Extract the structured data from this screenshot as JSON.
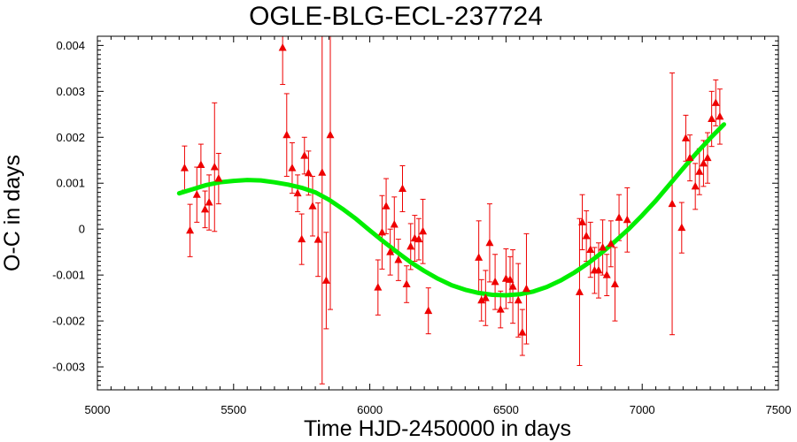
{
  "chart_data": {
    "type": "scatter",
    "title": "OGLE-BLG-ECL-237724",
    "xlabel": "Time HJD-2450000 in days",
    "ylabel": "O-C in days",
    "xlim": [
      5000,
      7500
    ],
    "ylim": [
      -0.0035,
      0.0042
    ],
    "x_ticks": [
      5000,
      5500,
      6000,
      6500,
      7000,
      7500
    ],
    "x_tick_labels": [
      "5000",
      "5500",
      "6000",
      "6500",
      "7000",
      "7500"
    ],
    "y_ticks": [
      -0.003,
      -0.002,
      -0.001,
      0,
      0.001,
      0.002,
      0.003,
      0.004
    ],
    "y_tick_labels": [
      "-0.003",
      "-0.002",
      "-0.001",
      "0",
      "0.001",
      "0.002",
      "0.003",
      "0.004"
    ],
    "grid": false,
    "colors": {
      "points": "#ee0000",
      "fit": "#00ee00",
      "frame": "#000000"
    },
    "series": [
      {
        "kind": "observations_with_errorbars",
        "points": [
          {
            "x": 5320,
            "y": 0.00133,
            "err": 0.00048
          },
          {
            "x": 5340,
            "y": -3e-05,
            "err": 0.00057
          },
          {
            "x": 5365,
            "y": 0.00075,
            "err": 0.0006
          },
          {
            "x": 5380,
            "y": 0.0014,
            "err": 0.00045
          },
          {
            "x": 5395,
            "y": 0.00043,
            "err": 0.0004
          },
          {
            "x": 5410,
            "y": 0.00058,
            "err": 0.0006
          },
          {
            "x": 5430,
            "y": 0.00135,
            "err": 0.0014
          },
          {
            "x": 5445,
            "y": 0.0011,
            "err": 0.00055
          },
          {
            "x": 5680,
            "y": 0.00395,
            "err": 0.0008
          },
          {
            "x": 5695,
            "y": 0.00205,
            "err": 0.0009
          },
          {
            "x": 5715,
            "y": 0.00133,
            "err": 0.00055
          },
          {
            "x": 5735,
            "y": 0.00078,
            "err": 0.0004
          },
          {
            "x": 5750,
            "y": -0.00022,
            "err": 0.00055
          },
          {
            "x": 5760,
            "y": 0.0016,
            "err": 0.0004
          },
          {
            "x": 5775,
            "y": 0.00122,
            "err": 0.00048
          },
          {
            "x": 5790,
            "y": 0.0005,
            "err": 0.00065
          },
          {
            "x": 5810,
            "y": -0.00023,
            "err": 0.0008
          },
          {
            "x": 5825,
            "y": 0.00123,
            "err": 0.0046
          },
          {
            "x": 5840,
            "y": -0.00112,
            "err": 0.00105
          },
          {
            "x": 5855,
            "y": 0.00205,
            "err": 0.0038
          },
          {
            "x": 6030,
            "y": -0.00127,
            "err": 0.0006
          },
          {
            "x": 6045,
            "y": -7e-05,
            "err": 0.0008
          },
          {
            "x": 6060,
            "y": 0.0005,
            "err": 0.0006
          },
          {
            "x": 6075,
            "y": -0.0005,
            "err": 0.0005
          },
          {
            "x": 6090,
            "y": 0.0001,
            "err": 0.0006
          },
          {
            "x": 6105,
            "y": -0.00067,
            "err": 0.00045
          },
          {
            "x": 6120,
            "y": 0.00088,
            "err": 0.0005
          },
          {
            "x": 6135,
            "y": -0.0012,
            "err": 0.0004
          },
          {
            "x": 6150,
            "y": -0.00038,
            "err": 0.0005
          },
          {
            "x": 6165,
            "y": -0.0002,
            "err": 0.0005
          },
          {
            "x": 6180,
            "y": -0.00022,
            "err": 0.00045
          },
          {
            "x": 6195,
            "y": -5e-05,
            "err": 0.0007
          },
          {
            "x": 6215,
            "y": -0.00178,
            "err": 0.0005
          },
          {
            "x": 6400,
            "y": -0.00062,
            "err": 0.0008
          },
          {
            "x": 6410,
            "y": -0.00155,
            "err": 0.00045
          },
          {
            "x": 6425,
            "y": -0.0015,
            "err": 0.0006
          },
          {
            "x": 6440,
            "y": -0.0003,
            "err": 0.00085
          },
          {
            "x": 6460,
            "y": -0.00115,
            "err": 0.0006
          },
          {
            "x": 6480,
            "y": -0.00175,
            "err": 0.0004
          },
          {
            "x": 6500,
            "y": -0.00108,
            "err": 0.00065
          },
          {
            "x": 6515,
            "y": -0.0011,
            "err": 0.0005
          },
          {
            "x": 6525,
            "y": -0.00125,
            "err": 0.0008
          },
          {
            "x": 6545,
            "y": -0.00155,
            "err": 0.0008
          },
          {
            "x": 6560,
            "y": -0.00225,
            "err": 0.0005
          },
          {
            "x": 6575,
            "y": -0.0013,
            "err": 0.0012
          },
          {
            "x": 6770,
            "y": -0.00137,
            "err": 0.0016
          },
          {
            "x": 6780,
            "y": 0.00015,
            "err": 0.0006
          },
          {
            "x": 6795,
            "y": -0.00015,
            "err": 0.00055
          },
          {
            "x": 6810,
            "y": -0.00045,
            "err": 0.0006
          },
          {
            "x": 6825,
            "y": -0.0009,
            "err": 0.0005
          },
          {
            "x": 6840,
            "y": -0.0009,
            "err": 0.0006
          },
          {
            "x": 6855,
            "y": -0.0004,
            "err": 0.0006
          },
          {
            "x": 6870,
            "y": -0.001,
            "err": 0.00045
          },
          {
            "x": 6885,
            "y": -0.00032,
            "err": 0.0005
          },
          {
            "x": 6900,
            "y": -0.0012,
            "err": 0.0008
          },
          {
            "x": 6915,
            "y": 0.00025,
            "err": 0.0005
          },
          {
            "x": 6945,
            "y": 0.0002,
            "err": 0.0007
          },
          {
            "x": 7110,
            "y": 0.00055,
            "err": 0.00285
          },
          {
            "x": 7145,
            "y": 3e-05,
            "err": 0.00055
          },
          {
            "x": 7160,
            "y": 0.00198,
            "err": 0.0005
          },
          {
            "x": 7175,
            "y": 0.00155,
            "err": 0.0005
          },
          {
            "x": 7195,
            "y": 0.00093,
            "err": 0.0005
          },
          {
            "x": 7210,
            "y": 0.00125,
            "err": 0.0005
          },
          {
            "x": 7225,
            "y": 0.00143,
            "err": 0.0005
          },
          {
            "x": 7240,
            "y": 0.00155,
            "err": 0.00055
          },
          {
            "x": 7255,
            "y": 0.0024,
            "err": 0.0006
          },
          {
            "x": 7270,
            "y": 0.00275,
            "err": 0.0005
          },
          {
            "x": 7285,
            "y": 0.00245,
            "err": 0.0006
          }
        ]
      },
      {
        "kind": "fit_curve",
        "x": [
          5300,
          5350,
          5400,
          5450,
          5500,
          5550,
          5600,
          5650,
          5700,
          5750,
          5800,
          5850,
          5900,
          5950,
          6000,
          6050,
          6100,
          6150,
          6200,
          6250,
          6300,
          6350,
          6400,
          6450,
          6500,
          6550,
          6600,
          6650,
          6700,
          6750,
          6800,
          6850,
          6900,
          6950,
          7000,
          7050,
          7100,
          7150,
          7200,
          7250,
          7300
        ],
        "y": [
          0.00078,
          0.00087,
          0.00096,
          0.00102,
          0.00105,
          0.00107,
          0.00106,
          0.00102,
          0.00097,
          0.0009,
          0.0008,
          0.00064,
          0.00044,
          0.00022,
          -3e-05,
          -0.00027,
          -0.0005,
          -0.00072,
          -0.00091,
          -0.00108,
          -0.00122,
          -0.00132,
          -0.00139,
          -0.00143,
          -0.00144,
          -0.00142,
          -0.00136,
          -0.00126,
          -0.00112,
          -0.00095,
          -0.00075,
          -0.00052,
          -0.00027,
          0.0,
          0.0003,
          0.00062,
          0.00097,
          0.00132,
          0.00166,
          0.00198,
          0.00228
        ]
      }
    ]
  }
}
